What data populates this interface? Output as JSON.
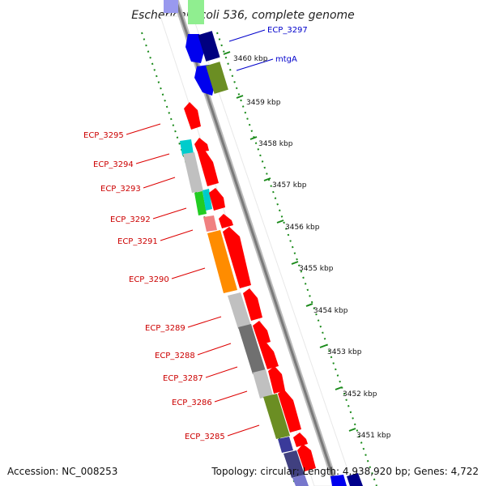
{
  "title": "Escherichia coli 536, complete genome",
  "accession": "Accession: NC_008253",
  "summary": "Topology: circular; Length: 4,938,920 bp; Genes: 4,722",
  "kbp_ticks": [
    "3460 kbp",
    "3459 kbp",
    "3458 kbp",
    "3457 kbp",
    "3456 kbp",
    "3455 kbp",
    "3454 kbp",
    "3453 kbp",
    "3452 kbp",
    "3451 kbp"
  ],
  "gene_labels_left": [
    "ECP_3295",
    "ECP_3294",
    "ECP_3293",
    "ECP_3292",
    "ECP_3291",
    "ECP_3290",
    "ECP_3289",
    "ECP_3288",
    "ECP_3287",
    "ECP_3286",
    "ECP_3285"
  ],
  "gene_labels_right": [
    "ECP_3297",
    "mtgA"
  ],
  "colors": {
    "forward_gene": "#ff0000",
    "reverse_gene": "#0000ee",
    "backbone": "#888888",
    "gc_ruler": "#228b22",
    "label_left": "#cc0000",
    "label_right": "#0000cc"
  }
}
